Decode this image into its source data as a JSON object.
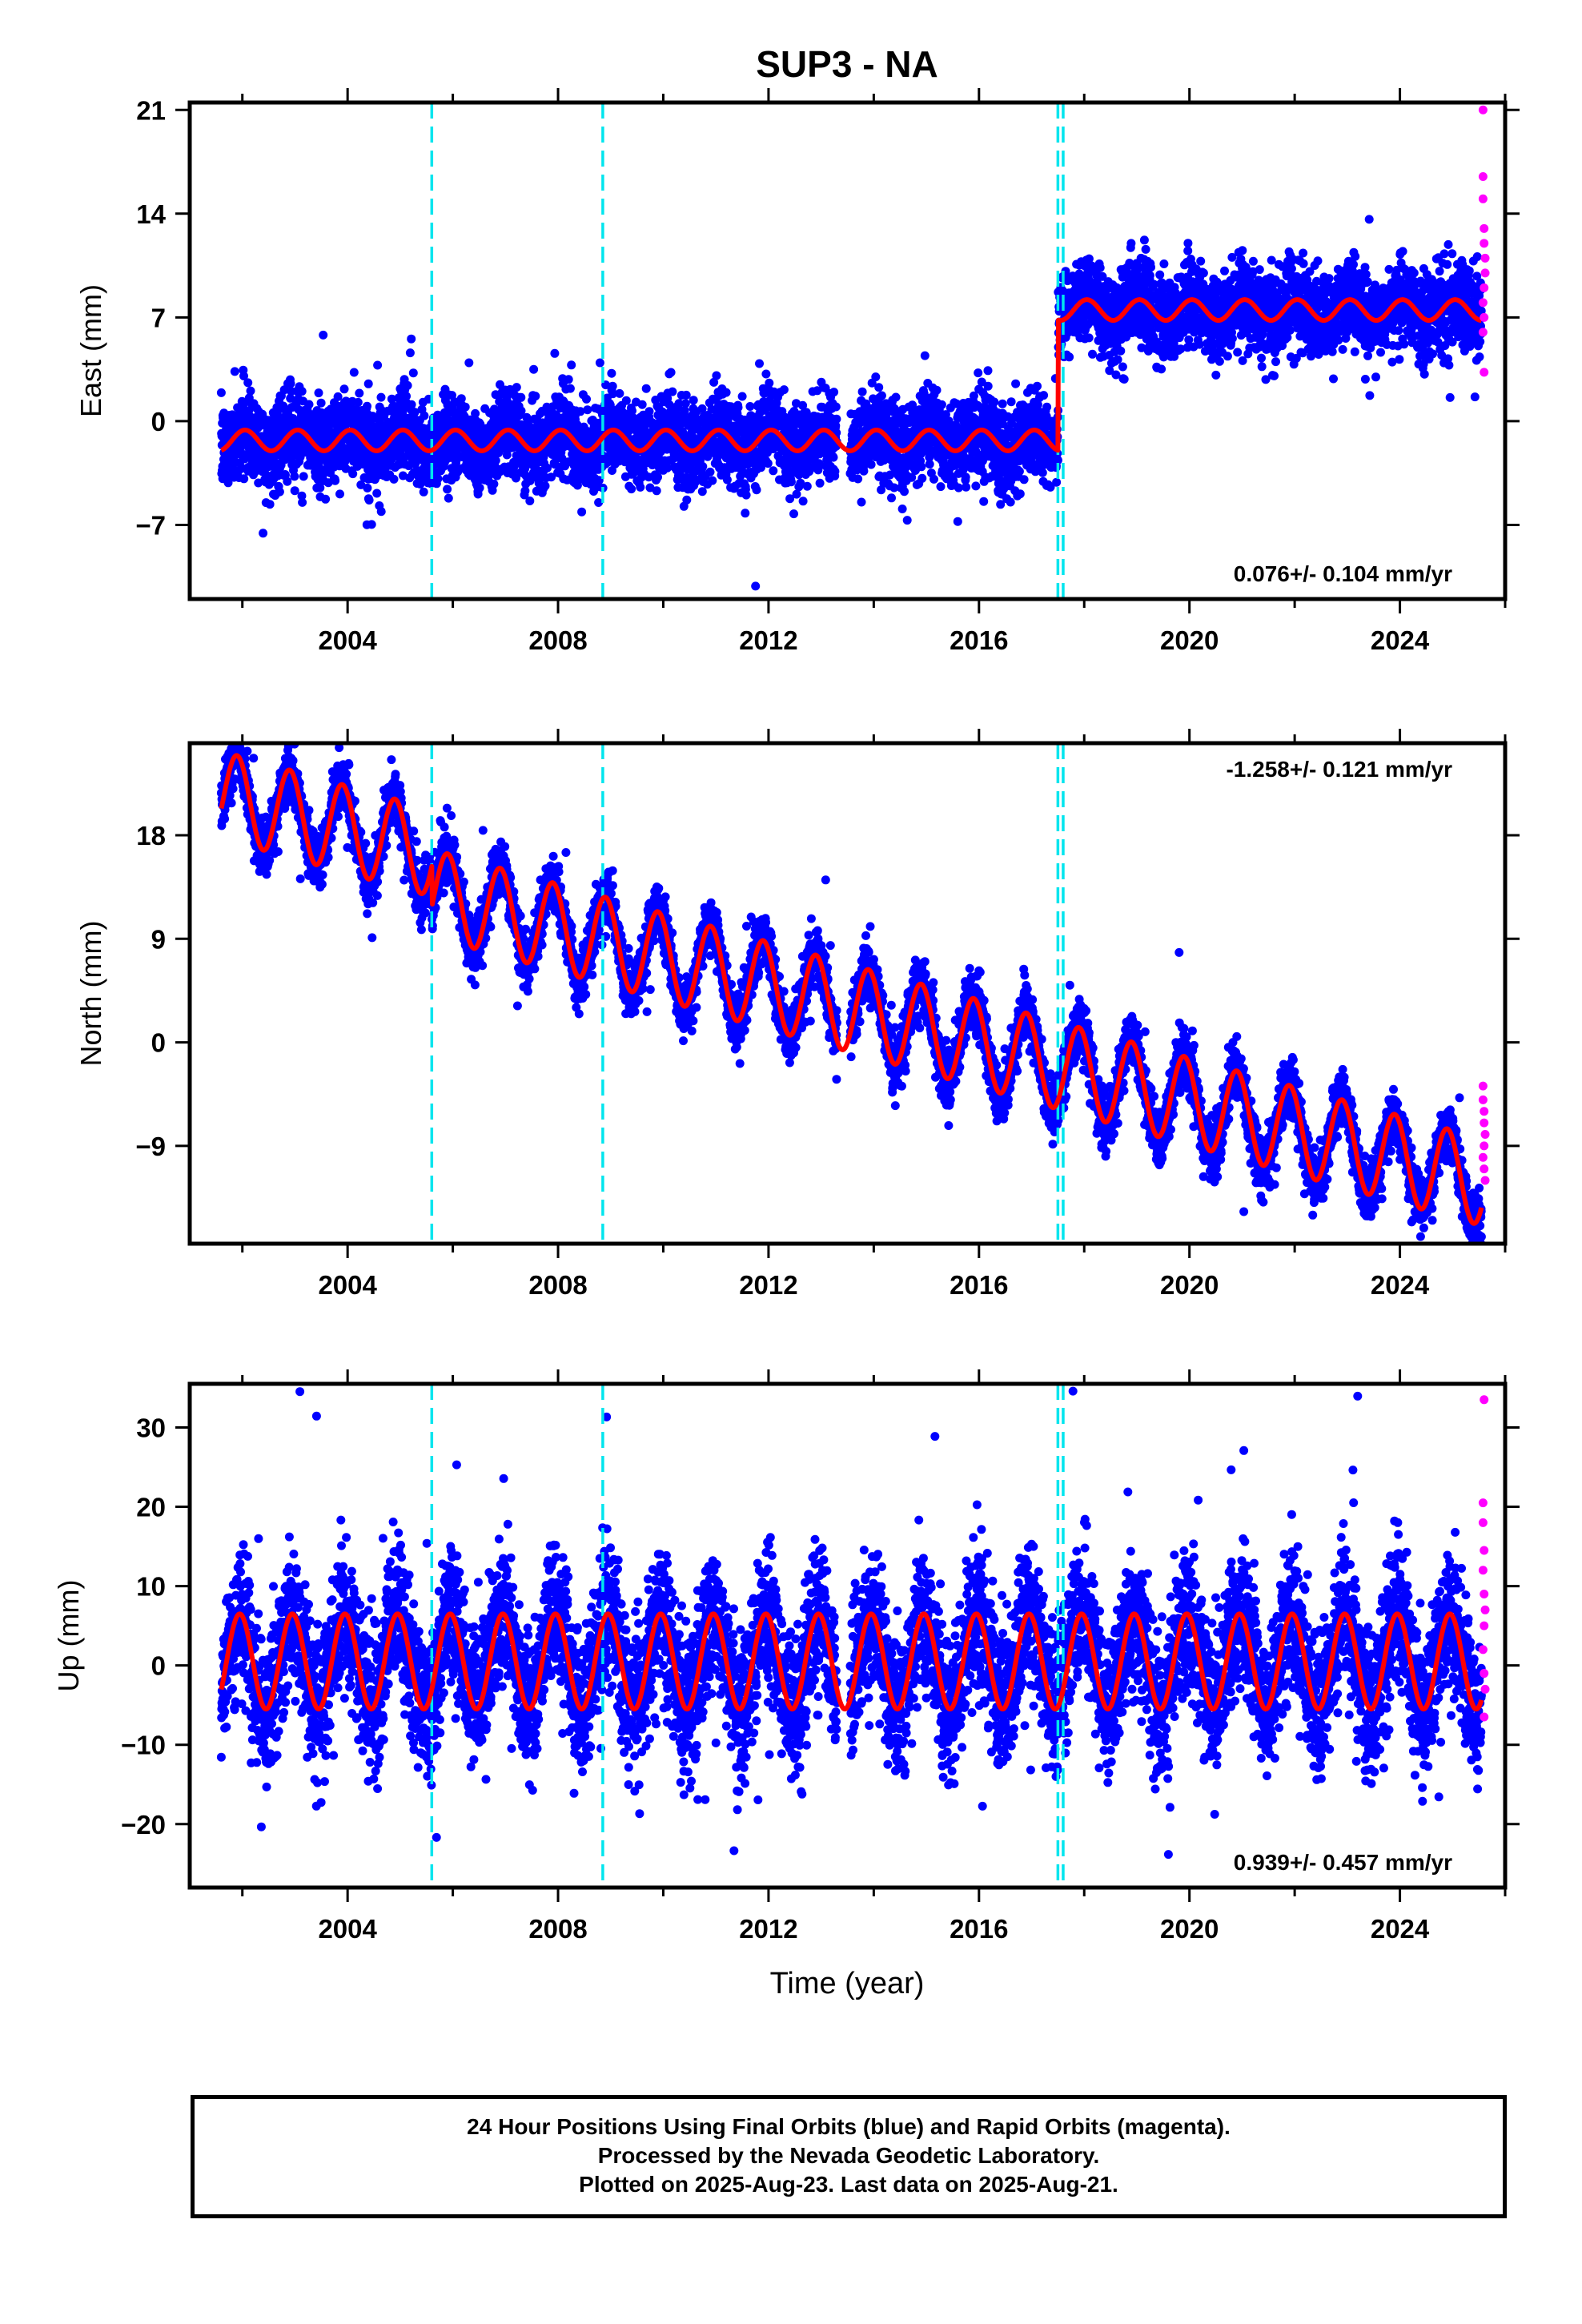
{
  "chart_data": {
    "title": "SUP3 - NA",
    "type": "scatter",
    "xlabel": "Time (year)",
    "xlim": [
      2001.0,
      2026.0
    ],
    "xticks": [
      2004,
      2008,
      2012,
      2016,
      2020,
      2024
    ],
    "grid": false,
    "equipment_changes": [
      2005.6,
      2008.85,
      2017.5,
      2017.6
    ],
    "colors": {
      "final": "#0000ff",
      "rapid": "#ff00ff",
      "model": "#ff0000",
      "event": "#00e5ee"
    },
    "panels": [
      {
        "name": "east",
        "ylabel": "East (mm)",
        "ylim": [
          -12,
          21.5
        ],
        "yticks": [
          -7,
          0,
          7,
          14,
          21
        ],
        "ytick_labels": [
          "−7",
          "0",
          "7",
          "14",
          "21"
        ],
        "rate_label": "0.076+/- 0.104 mm/yr",
        "rate_position": "bottom-right",
        "model": {
          "offset_before": -1.3,
          "offset_after": 7.5,
          "step_year": 2017.5,
          "amplitude": 0.7,
          "phase": 0.2
        },
        "scatter_sd": 1.4,
        "rapid_points": [
          [
            2025.58,
            21
          ],
          [
            2025.58,
            16.5
          ],
          [
            2025.58,
            15
          ],
          [
            2025.6,
            13
          ],
          [
            2025.6,
            12
          ],
          [
            2025.62,
            11
          ],
          [
            2025.62,
            10
          ],
          [
            2025.6,
            9
          ],
          [
            2025.58,
            8
          ],
          [
            2025.6,
            7
          ],
          [
            2025.58,
            6
          ],
          [
            2025.6,
            3.3
          ]
        ]
      },
      {
        "name": "north",
        "ylabel": "North (mm)",
        "ylim": [
          -17.5,
          26
        ],
        "yticks": [
          -9,
          0,
          9,
          18
        ],
        "ytick_labels": [
          "−9",
          "0",
          "9",
          "18"
        ],
        "rate_label": "-1.258+/- 0.121 mm/yr",
        "rate_position": "top-right",
        "model": {
          "start": 21.5,
          "rate": -1.258,
          "offset_2005": -3.5,
          "amplitude": 3.8,
          "phase": 0.35
        },
        "scatter_sd": 1.2,
        "rapid_points": [
          [
            2025.58,
            -3.8
          ],
          [
            2025.58,
            -5
          ],
          [
            2025.6,
            -6
          ],
          [
            2025.6,
            -7
          ],
          [
            2025.62,
            -8
          ],
          [
            2025.6,
            -9
          ],
          [
            2025.58,
            -10
          ],
          [
            2025.6,
            -11
          ],
          [
            2025.62,
            -12
          ]
        ]
      },
      {
        "name": "up",
        "ylabel": "Up (mm)",
        "ylim": [
          -28,
          35.5
        ],
        "yticks": [
          -20,
          -10,
          0,
          10,
          20,
          30
        ],
        "ytick_labels": [
          "−20",
          "−10",
          "0",
          "10",
          "20",
          "30"
        ],
        "rate_label": "0.939+/- 0.457 mm/yr",
        "rate_position": "bottom-right",
        "model": {
          "mean": 0.5,
          "amplitude": 6.0,
          "phase": 0.3
        },
        "scatter_sd": 4.5,
        "rapid_points": [
          [
            2025.6,
            33.5
          ],
          [
            2025.58,
            20.5
          ],
          [
            2025.58,
            18
          ],
          [
            2025.6,
            14.5
          ],
          [
            2025.58,
            12
          ],
          [
            2025.6,
            9
          ],
          [
            2025.62,
            7
          ],
          [
            2025.6,
            5
          ],
          [
            2025.58,
            2
          ],
          [
            2025.6,
            -1
          ],
          [
            2025.62,
            -3
          ],
          [
            2025.6,
            -6.5
          ]
        ]
      }
    ]
  },
  "footer": {
    "line1": "24 Hour Positions Using Final Orbits (blue) and Rapid Orbits (magenta).",
    "line2": "Processed by the Nevada Geodetic Laboratory.",
    "line3": "Plotted on 2025-Aug-23. Last data on 2025-Aug-21."
  }
}
